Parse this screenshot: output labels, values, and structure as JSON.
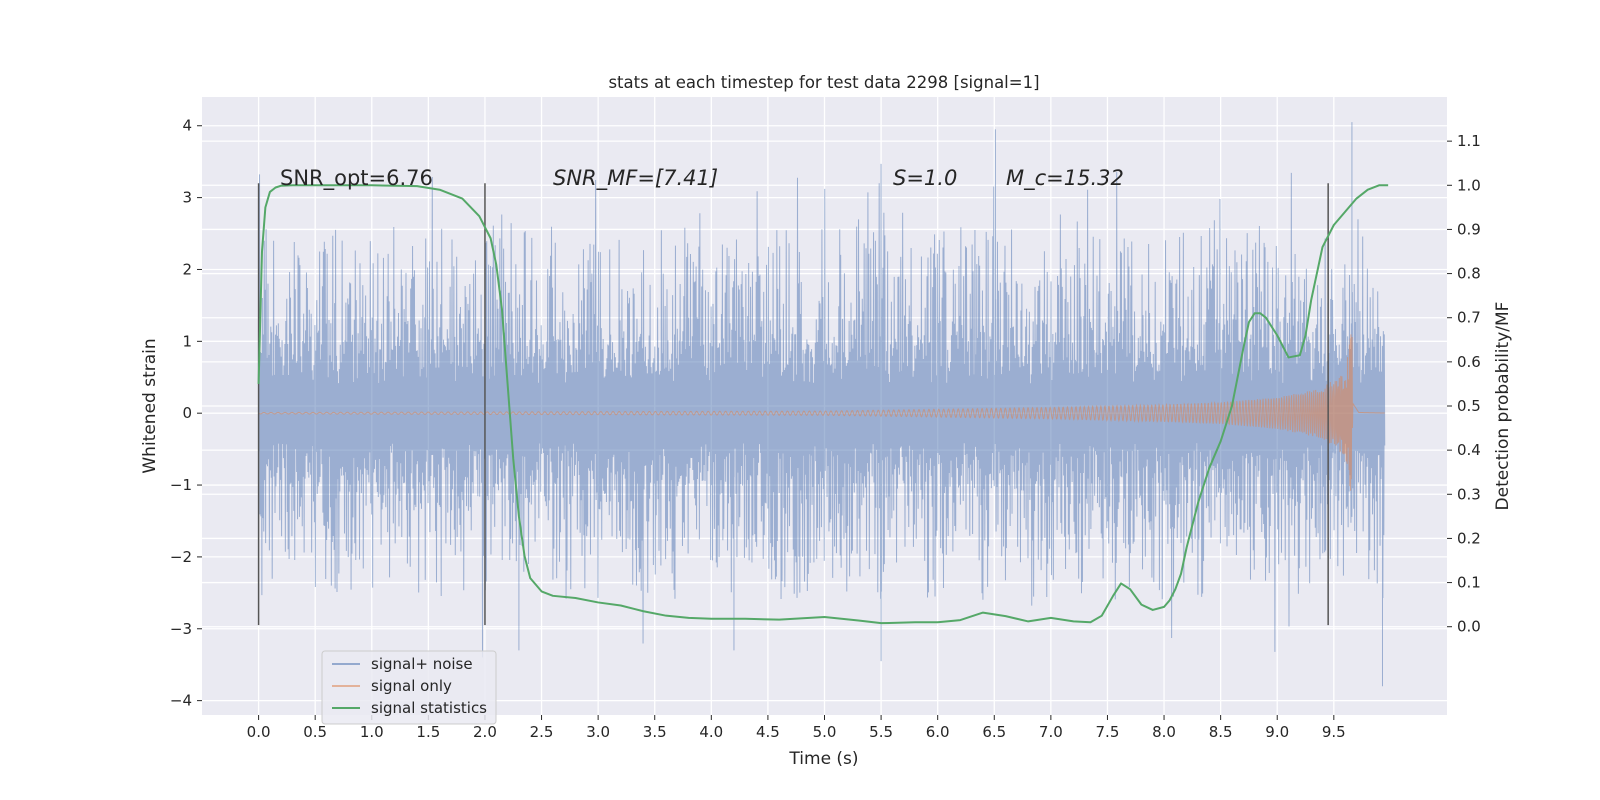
{
  "chart_data": {
    "type": "line",
    "title": "stats at each timestep for test data 2298 [signal=1]",
    "xlabel": "Time (s)",
    "ylabel_left": "Whitened strain",
    "ylabel_right": "Detection probability/MF",
    "xlim": [
      -0.5,
      10.5
    ],
    "ylim_left": [
      -4.2,
      4.4
    ],
    "ylim_right": [
      -0.2,
      1.2
    ],
    "xticks": [
      0.0,
      0.5,
      1.0,
      1.5,
      2.0,
      2.5,
      3.0,
      3.5,
      4.0,
      4.5,
      5.0,
      5.5,
      6.0,
      6.5,
      7.0,
      7.5,
      8.0,
      8.5,
      9.0,
      9.5
    ],
    "xtick_labels": [
      "0.0",
      "0.5",
      "1.0",
      "1.5",
      "2.0",
      "2.5",
      "3.0",
      "3.5",
      "4.0",
      "4.5",
      "5.0",
      "5.5",
      "6.0",
      "6.5",
      "7.0",
      "7.5",
      "8.0",
      "8.5",
      "9.0",
      "9.5"
    ],
    "yticks_left": [
      -4,
      -3,
      -2,
      -1,
      0,
      1,
      2,
      3,
      4
    ],
    "ytick_labels_left": [
      "−4",
      "−3",
      "−2",
      "−1",
      "0",
      "1",
      "2",
      "3",
      "4"
    ],
    "yticks_right": [
      0.0,
      0.1,
      0.2,
      0.3,
      0.4,
      0.5,
      0.6,
      0.7,
      0.8,
      0.9,
      1.0,
      1.1
    ],
    "ytick_labels_right": [
      "0.0",
      "0.1",
      "0.2",
      "0.3",
      "0.4",
      "0.5",
      "0.6",
      "0.7",
      "0.8",
      "0.9",
      "1.0",
      "1.1"
    ],
    "grid": true,
    "legend_position": "lower-left",
    "annotations": [
      {
        "text": "SNR_opt=6.76",
        "x": 0.2,
        "y": 3.2
      },
      {
        "text": "SNR_MF=[7.41]",
        "x": 2.6,
        "y": 3.2
      },
      {
        "text": "S=1.0",
        "x": 5.6,
        "y": 3.2
      },
      {
        "text": "M_c=15.32",
        "x": 6.6,
        "y": 3.2
      }
    ],
    "vertical_markers": [
      {
        "x": 0.0,
        "y": [
          -2.95,
          3.2
        ]
      },
      {
        "x": 2.0,
        "y": [
          -2.95,
          3.2
        ]
      },
      {
        "x": 9.45,
        "y": [
          -2.95,
          3.2
        ]
      }
    ],
    "series": [
      {
        "name": "signal+ noise",
        "axis": "left",
        "color": "#4c72b0",
        "noise": {
          "t_start": 0.0,
          "t_end": 9.95,
          "core_amplitude": 1.3,
          "typical_peak_range": [
            -2.6,
            2.6
          ],
          "extreme_max": 4.05,
          "extreme_min": -3.8
        }
      },
      {
        "name": "signal only",
        "axis": "left",
        "color": "#dd8452",
        "chirp": {
          "t_start": 0.0,
          "t_merger": 9.67,
          "t_end": 9.95,
          "envelope": [
            [
              0.0,
              0.01
            ],
            [
              5.0,
              0.03
            ],
            [
              7.0,
              0.08
            ],
            [
              8.0,
              0.12
            ],
            [
              8.5,
              0.15
            ],
            [
              9.0,
              0.22
            ],
            [
              9.4,
              0.35
            ],
            [
              9.6,
              0.6
            ],
            [
              9.67,
              1.3
            ],
            [
              9.72,
              0.1
            ],
            [
              9.95,
              0.02
            ]
          ]
        }
      },
      {
        "name": "signal statistics",
        "axis": "right",
        "color": "#55a868",
        "x": [
          0.0,
          0.03,
          0.06,
          0.1,
          0.15,
          0.2,
          0.3,
          0.5,
          1.0,
          1.4,
          1.6,
          1.8,
          1.95,
          2.05,
          2.1,
          2.15,
          2.2,
          2.25,
          2.3,
          2.35,
          2.4,
          2.5,
          2.6,
          2.8,
          3.0,
          3.2,
          3.4,
          3.6,
          3.8,
          4.0,
          4.3,
          4.6,
          5.0,
          5.3,
          5.5,
          5.8,
          6.0,
          6.2,
          6.4,
          6.6,
          6.8,
          7.0,
          7.2,
          7.35,
          7.45,
          7.55,
          7.62,
          7.7,
          7.8,
          7.9,
          8.0,
          8.05,
          8.1,
          8.15,
          8.2,
          8.3,
          8.4,
          8.5,
          8.6,
          8.7,
          8.75,
          8.8,
          8.85,
          8.9,
          9.0,
          9.1,
          9.2,
          9.25,
          9.3,
          9.4,
          9.5,
          9.6,
          9.7,
          9.8,
          9.9,
          9.98
        ],
        "y": [
          0.55,
          0.85,
          0.95,
          0.985,
          0.995,
          0.999,
          1.0,
          1.0,
          1.0,
          0.998,
          0.99,
          0.97,
          0.93,
          0.88,
          0.82,
          0.72,
          0.55,
          0.38,
          0.25,
          0.16,
          0.11,
          0.08,
          0.07,
          0.065,
          0.055,
          0.048,
          0.035,
          0.025,
          0.02,
          0.018,
          0.018,
          0.016,
          0.022,
          0.014,
          0.008,
          0.01,
          0.01,
          0.015,
          0.032,
          0.024,
          0.012,
          0.02,
          0.012,
          0.01,
          0.025,
          0.07,
          0.098,
          0.085,
          0.05,
          0.038,
          0.045,
          0.06,
          0.085,
          0.12,
          0.18,
          0.28,
          0.36,
          0.42,
          0.5,
          0.63,
          0.69,
          0.71,
          0.71,
          0.7,
          0.66,
          0.61,
          0.615,
          0.66,
          0.74,
          0.86,
          0.91,
          0.94,
          0.97,
          0.99,
          1.0,
          1.0
        ]
      }
    ]
  }
}
